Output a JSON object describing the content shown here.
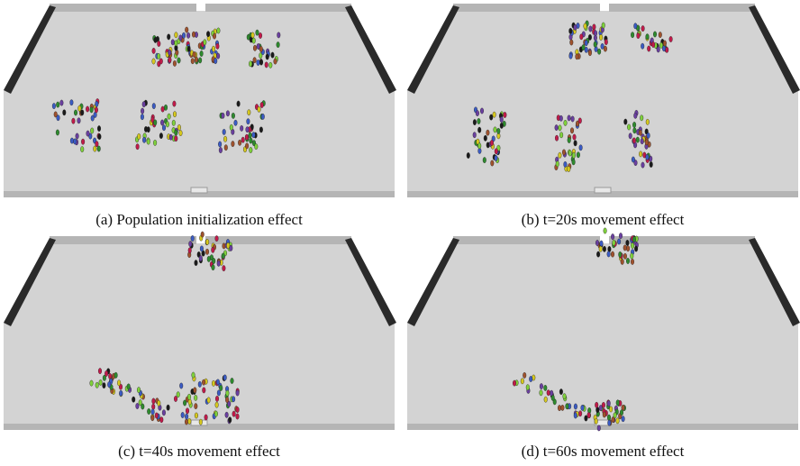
{
  "captions": [
    "(a) Population initialization effect",
    "(b) t=20s movement effect",
    "(c) t=40s movement effect",
    "(d) t=60s movement effect"
  ]
}
